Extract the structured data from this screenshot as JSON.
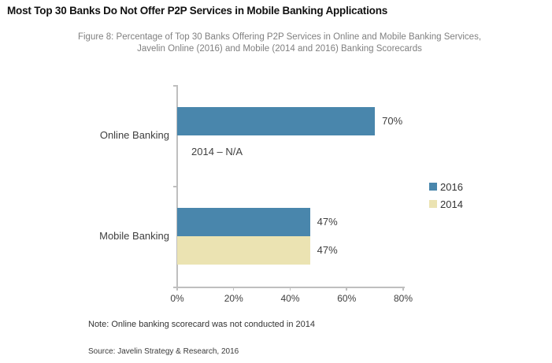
{
  "header": {
    "title": "Most Top 30 Banks Do Not Offer P2P Services in Mobile Banking Applications",
    "subtitle_line1": "Figure 8: Percentage of Top 30 Banks Offering P2P Services in Online and Mobile Banking Services,",
    "subtitle_line2": "Javelin Online (2016) and Mobile (2014 and 2016) Banking Scorecards"
  },
  "chart_data": {
    "type": "bar",
    "orientation": "horizontal",
    "title": "Figure 8: Percentage of Top 30 Banks Offering P2P Services in Online and Mobile Banking Services",
    "categories": [
      "Online Banking",
      "Mobile Banking"
    ],
    "series": [
      {
        "name": "2016",
        "color": "#4986AC",
        "values": [
          70,
          47
        ],
        "labels": [
          "70%",
          "47%"
        ]
      },
      {
        "name": "2014",
        "color": "#EBE3B2",
        "values": [
          null,
          47
        ],
        "labels": [
          null,
          "47%"
        ]
      }
    ],
    "na_annotation": "2014 – N/A",
    "x_ticks": [
      "0%",
      "20%",
      "40%",
      "60%",
      "80%"
    ],
    "xlim": [
      0,
      80
    ],
    "grid": false,
    "legend_position": "right",
    "legend": [
      {
        "label": "2016",
        "color": "#4986AC"
      },
      {
        "label": "2014",
        "color": "#EBE3B2"
      }
    ],
    "axis_color": "#bfbfbf"
  },
  "footer": {
    "note": "Note:  Online banking scorecard was not conducted in 2014",
    "source": "Source:  Javelin Strategy & Research, 2016"
  }
}
